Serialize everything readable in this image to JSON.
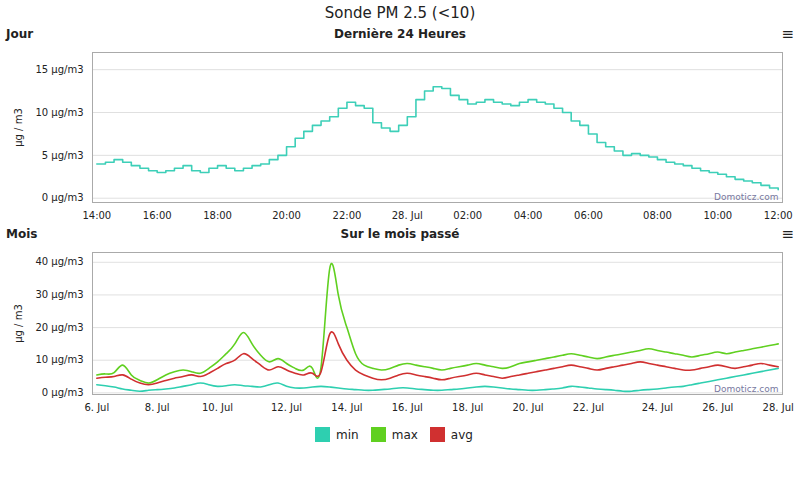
{
  "title": "Sonde PM 2.5 (<10)",
  "chart_data": [
    {
      "type": "step",
      "title": "Dernière 24 Heures",
      "annotations": [
        "Jour",
        "≡",
        "Domoticz.com"
      ],
      "y_label": "µg / m3",
      "x": [
        "14:00",
        null,
        null,
        null,
        null,
        null,
        null,
        "16:00",
        null,
        null,
        null,
        null,
        null,
        null,
        "18:00",
        null,
        null,
        null,
        null,
        null,
        null,
        null,
        "20:00",
        null,
        null,
        null,
        null,
        null,
        null,
        "22:00",
        null,
        null,
        null,
        null,
        null,
        null,
        "28. Jul",
        null,
        null,
        null,
        null,
        null,
        null,
        "02:00",
        null,
        null,
        null,
        null,
        null,
        null,
        "04:00",
        null,
        null,
        null,
        null,
        null,
        null,
        "06:00",
        null,
        null,
        null,
        null,
        null,
        null,
        null,
        "08:00",
        null,
        null,
        null,
        null,
        null,
        null,
        "10:00",
        null,
        null,
        null,
        null,
        null,
        null,
        "12:00"
      ],
      "values": [
        4.0,
        4.2,
        4.5,
        4.2,
        3.8,
        3.5,
        3.2,
        3.0,
        3.2,
        3.5,
        3.8,
        3.2,
        3.0,
        3.5,
        3.8,
        3.5,
        3.2,
        3.5,
        3.8,
        4.0,
        4.5,
        5.0,
        6.0,
        7.0,
        7.8,
        8.5,
        9.0,
        9.5,
        10.5,
        11.2,
        10.8,
        10.5,
        8.8,
        8.2,
        7.8,
        8.5,
        9.5,
        11.5,
        12.5,
        13.0,
        12.8,
        12.0,
        11.5,
        11.0,
        11.2,
        11.5,
        11.2,
        11.0,
        10.8,
        11.2,
        11.5,
        11.2,
        11.0,
        10.5,
        10.0,
        9.0,
        8.5,
        7.5,
        6.5,
        6.0,
        5.5,
        5.0,
        5.2,
        5.0,
        4.8,
        4.5,
        4.2,
        4.0,
        3.8,
        3.5,
        3.2,
        3.0,
        2.8,
        2.5,
        2.2,
        2.0,
        1.8,
        1.5,
        1.2,
        1.0
      ],
      "color": "#3dcfb8",
      "ylim": [
        -0.5,
        17
      ],
      "yticks": [
        {
          "value": 0,
          "label": "0 µg/m3"
        },
        {
          "value": 5,
          "label": "5 µg/m3"
        },
        {
          "value": 10,
          "label": "10 µg/m3"
        },
        {
          "value": 15,
          "label": "15 µg/m3"
        }
      ],
      "grid": true
    },
    {
      "type": "line",
      "title": "Sur le mois passé",
      "annotations": [
        "Mois",
        "≡",
        "Domoticz.com"
      ],
      "y_label": "µg / m3",
      "x": [
        "6. Jul",
        null,
        null,
        null,
        null,
        null,
        null,
        "8. Jul",
        null,
        null,
        null,
        null,
        null,
        null,
        "10. Jul",
        null,
        null,
        null,
        null,
        null,
        null,
        null,
        "12. Jul",
        null,
        null,
        null,
        null,
        null,
        null,
        "14. Jul",
        null,
        null,
        null,
        null,
        null,
        null,
        "16. Jul",
        null,
        null,
        null,
        null,
        null,
        null,
        "18. Jul",
        null,
        null,
        null,
        null,
        null,
        null,
        "20. Jul",
        null,
        null,
        null,
        null,
        null,
        null,
        "22. Jul",
        null,
        null,
        null,
        null,
        null,
        null,
        null,
        "24. Jul",
        null,
        null,
        null,
        null,
        null,
        null,
        "26. Jul",
        null,
        null,
        null,
        null,
        null,
        null,
        "28. Jul"
      ],
      "series": [
        {
          "name": "min",
          "color": "#2ecfb0",
          "values": [
            2.5,
            2.2,
            1.8,
            1.2,
            0.8,
            0.5,
            0.8,
            1.0,
            1.2,
            1.5,
            2.0,
            2.5,
            3.0,
            2.5,
            2.0,
            2.2,
            2.5,
            2.2,
            2.0,
            1.8,
            2.5,
            3.0,
            2.0,
            1.5,
            1.5,
            1.8,
            2.0,
            1.8,
            1.5,
            1.2,
            1.0,
            0.8,
            0.8,
            1.0,
            1.2,
            1.5,
            1.5,
            1.2,
            1.0,
            0.8,
            0.8,
            1.0,
            1.2,
            1.5,
            1.8,
            2.0,
            1.8,
            1.5,
            1.2,
            1.0,
            0.8,
            0.8,
            1.0,
            1.2,
            1.5,
            2.0,
            1.8,
            1.5,
            1.2,
            1.0,
            0.8,
            0.5,
            0.5,
            0.8,
            1.0,
            1.2,
            1.5,
            1.8,
            2.0,
            2.5,
            3.0,
            3.5,
            4.0,
            4.5,
            5.0,
            5.5,
            6.0,
            6.5,
            7.0,
            7.5
          ]
        },
        {
          "name": "max",
          "color": "#60d020",
          "values": [
            5.5,
            5.8,
            6.2,
            8.5,
            5.5,
            3.8,
            3.0,
            4.0,
            5.5,
            6.5,
            7.0,
            6.5,
            6.0,
            7.5,
            9.5,
            12.0,
            15.0,
            18.5,
            15.0,
            11.5,
            9.5,
            10.5,
            9.0,
            7.5,
            7.0,
            7.5,
            8.0,
            38.0,
            30.0,
            20.0,
            12.0,
            8.5,
            7.5,
            7.0,
            7.5,
            8.5,
            9.0,
            8.5,
            8.0,
            7.5,
            7.0,
            7.5,
            8.0,
            8.5,
            9.0,
            8.5,
            8.0,
            7.5,
            8.0,
            9.0,
            9.5,
            10.0,
            10.5,
            11.0,
            11.5,
            12.0,
            11.5,
            11.0,
            10.5,
            11.0,
            11.5,
            12.0,
            12.5,
            13.0,
            13.5,
            13.0,
            12.5,
            12.0,
            11.5,
            11.0,
            11.5,
            12.0,
            12.5,
            12.0,
            12.5,
            13.0,
            13.5,
            14.0,
            14.5,
            15.0
          ]
        },
        {
          "name": "avg",
          "color": "#d03030",
          "values": [
            4.5,
            4.8,
            5.0,
            5.5,
            4.2,
            3.0,
            2.5,
            3.0,
            3.8,
            4.5,
            5.0,
            5.5,
            5.0,
            6.0,
            7.5,
            9.0,
            10.0,
            12.0,
            10.5,
            8.5,
            7.0,
            8.0,
            7.0,
            6.0,
            5.5,
            6.0,
            6.5,
            18.0,
            15.0,
            10.0,
            7.0,
            5.5,
            4.5,
            4.0,
            4.5,
            5.5,
            6.0,
            5.5,
            5.0,
            4.5,
            4.0,
            4.5,
            5.0,
            5.5,
            6.0,
            5.5,
            5.0,
            4.5,
            5.0,
            5.5,
            6.0,
            6.5,
            7.0,
            7.5,
            8.0,
            8.5,
            8.0,
            7.5,
            7.0,
            7.5,
            8.0,
            8.5,
            9.0,
            9.5,
            9.0,
            8.5,
            8.0,
            7.5,
            7.0,
            7.0,
            7.5,
            8.0,
            8.5,
            8.0,
            7.5,
            8.0,
            8.5,
            9.0,
            8.5,
            8.0
          ]
        }
      ],
      "ylim": [
        -0.5,
        43
      ],
      "yticks": [
        {
          "value": 0,
          "label": "0 µg/m3"
        },
        {
          "value": 10,
          "label": "10 µg/m3"
        },
        {
          "value": 20,
          "label": "20 µg/m3"
        },
        {
          "value": 30,
          "label": "30 µg/m3"
        },
        {
          "value": 40,
          "label": "40 µg/m3"
        }
      ],
      "grid": true,
      "legend": "bottom"
    }
  ]
}
